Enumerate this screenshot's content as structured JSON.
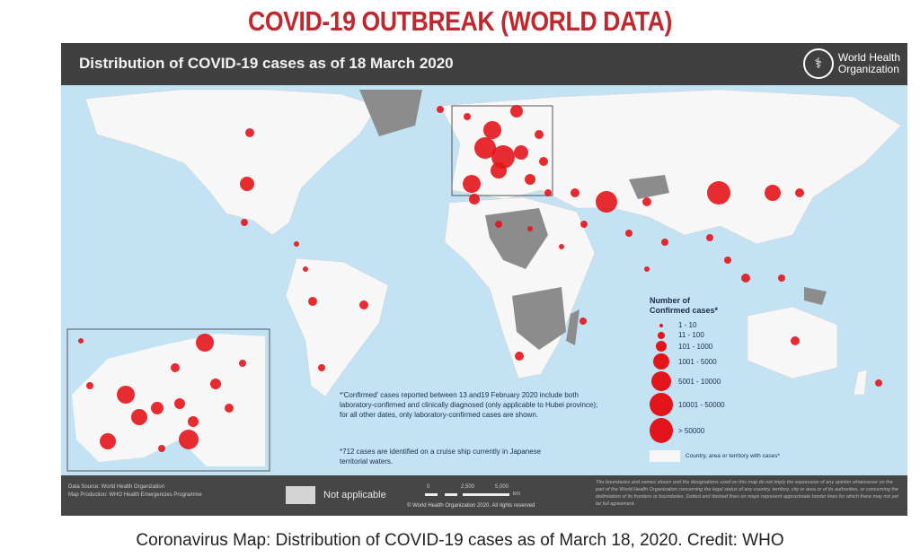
{
  "title": "COVID-19 OUTBREAK (WORLD DATA)",
  "map": {
    "header_title": "Distribution of COVID-19  cases as of 18 March 2020",
    "org_name_line1": "World Health",
    "org_name_line2": "Organization",
    "legend": {
      "title_line1": "Number of",
      "title_line2": "Confirmed cases*",
      "bins": [
        "1 - 10",
        "11 - 100",
        "101 - 1000",
        "1001 - 5000",
        "5001 - 10000",
        "10001 - 50000",
        "> 50000"
      ],
      "with_cases_label": "Country, area or territory with cases*"
    },
    "note_confirmed": "*'Confirmed' cases reported between 13 and19 February 2020 include both laboratory-confirmed and clinically diagnosed (only applicable to Hubei province); for all other dates, only laboratory-confirmed cases are shown.",
    "note_cruise": "*712 cases are identified on a cruise ship currently in Japanese territorial waters.",
    "footer": {
      "data_source": "Data Source: World Health Organization",
      "map_production": "Map Production: WHO Health Emergencies Programme",
      "not_applicable": "Not applicable",
      "scale_labels": [
        "0",
        "2,500",
        "5,000",
        "km"
      ],
      "copyright": "© World Health Organization 2020. All rights reserved",
      "disclaimer": "The boundaries and names shown and the designations used on this map do not imply the expression of any opinion whatsoever on the part of the World Health Organization concerning the legal status of any country, territory, city or area or of its authorities, or concerning the delimitation of its frontiers or boundaries. Dotted and dashed lines on maps represent approximate border lines for which there may not yet be full agreement."
    },
    "colors": {
      "ocean": "#c3e2f4",
      "land_with_cases": "#f7f7f7",
      "land_no_cases": "#8c8c8c",
      "not_applicable": "#d4d4d4",
      "bubble": "#e3151a",
      "title": "#c1272d"
    }
  },
  "caption": "Coronavirus Map: Distribution of COVID-19 cases as of March 18, 2020. Credit: WHO"
}
